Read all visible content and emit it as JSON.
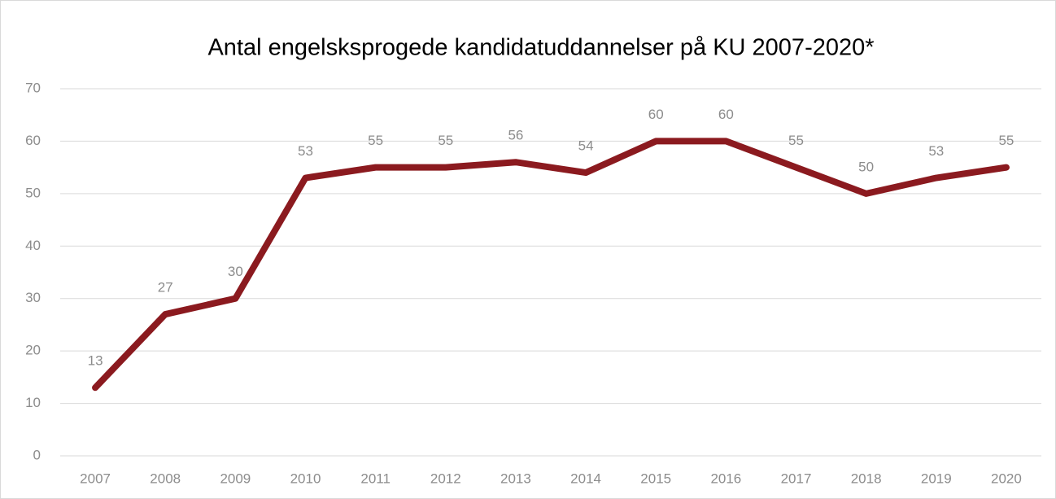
{
  "chart_data": {
    "type": "line",
    "title": "Antal engelsksprogede kandidatuddannelser på KU 2007-2020*",
    "categories": [
      "2007",
      "2008",
      "2009",
      "2010",
      "2011",
      "2012",
      "2013",
      "2014",
      "2015",
      "2016",
      "2017",
      "2018",
      "2019",
      "2020"
    ],
    "series": [
      {
        "name": "Antal",
        "color": "#8b1a1f",
        "values": [
          13,
          27,
          30,
          53,
          55,
          55,
          56,
          54,
          60,
          60,
          55,
          50,
          53,
          55
        ]
      }
    ],
    "ylim": [
      0,
      70
    ],
    "yticks": [
      0,
      10,
      20,
      30,
      40,
      50,
      60,
      70
    ],
    "grid": true
  }
}
